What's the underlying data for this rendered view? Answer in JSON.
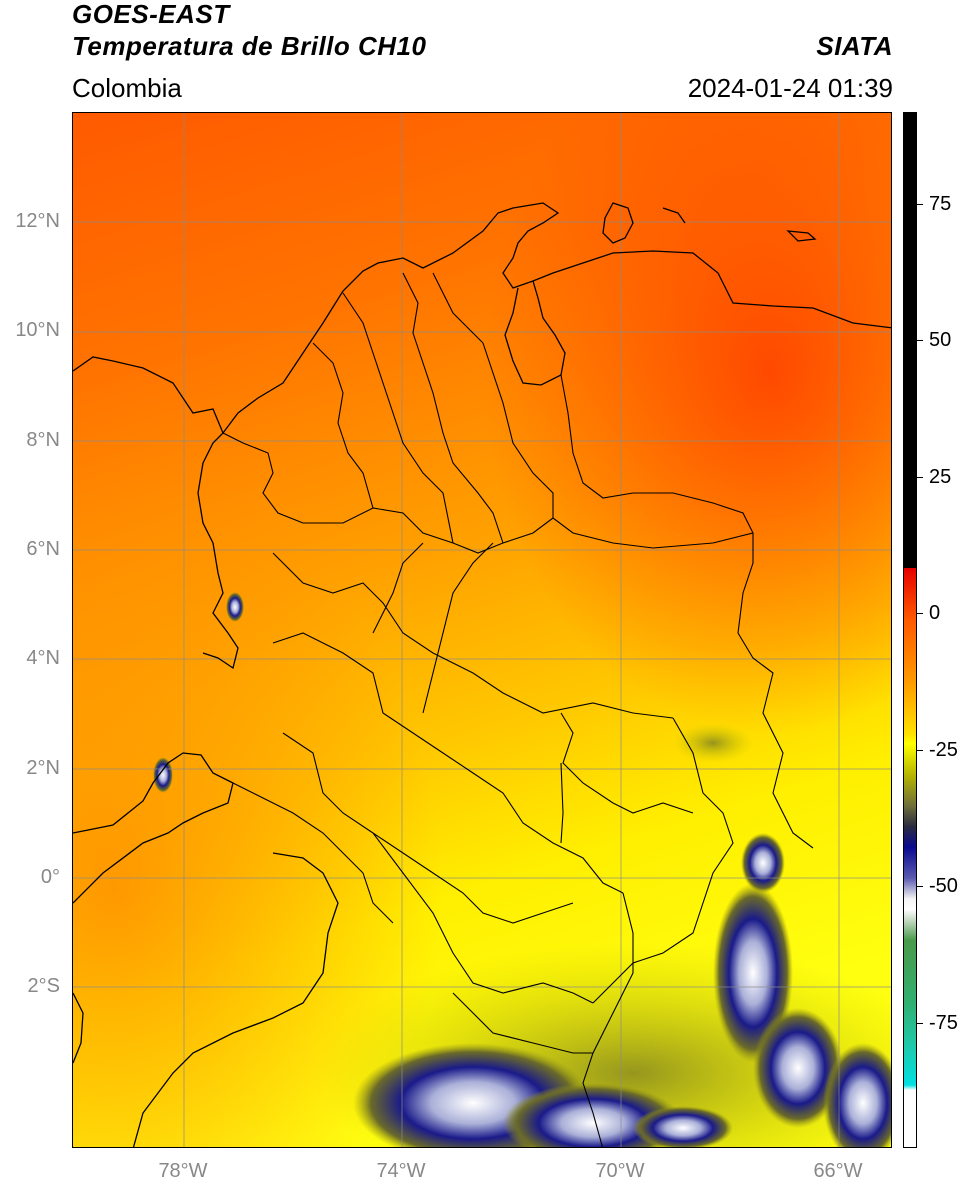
{
  "header": {
    "satellite": "GOES-EAST",
    "product": "Temperatura de Brillo CH10",
    "org": "SIATA",
    "region": "Colombia",
    "datetime": "2024-01-24 01:39"
  },
  "map": {
    "lat_ticks": [
      "12°N",
      "10°N",
      "8°N",
      "6°N",
      "4°N",
      "2°N",
      "0°",
      "2°S"
    ],
    "lon_ticks": [
      "78°W",
      "74°W",
      "70°W",
      "66°W"
    ],
    "extent": {
      "lon_min": -80.0,
      "lon_max": -65.0,
      "lat_min": -5.0,
      "lat_max": 14.0
    },
    "gridlines": true
  },
  "colorbar": {
    "ticks": [
      "75",
      "50",
      "25",
      "0",
      "-25",
      "-50",
      "-75"
    ],
    "range": [
      -95,
      90
    ],
    "colors": {
      "warm": "#000000",
      "hot": "#e60000",
      "orange": "#ff9a00",
      "yellow": "#ffff00",
      "olive": "#8a8a00",
      "navy": "#0a0a90",
      "white": "#ffffff",
      "green": "#4a9a4a",
      "cyan": "#00e0e0"
    }
  }
}
